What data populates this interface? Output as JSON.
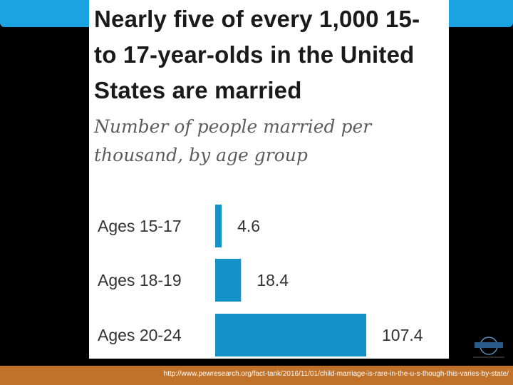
{
  "title": "Nearly five of every 1,000 15- to 17-year-olds in the United States are married",
  "subtitle": "Number of people married per thousand, by age group",
  "source_url": "http://www.pewresearch.org/fact-tank/2016/11/01/child-marriage-is-rare-in-the-u-s-though-this-varies-by-state/",
  "colors": {
    "bar": "#1591c9",
    "accent_strip": "#1aa3e0",
    "footer": "#c0722a"
  },
  "logo_icon": "organization-logo-icon",
  "chart_data": {
    "type": "bar",
    "orientation": "horizontal",
    "title": "Nearly five of every 1,000 15- to 17-year-olds in the United States are married",
    "subtitle": "Number of people married per thousand, by age group",
    "categories": [
      "Ages 15-17",
      "Ages 18-19",
      "Ages 20-24"
    ],
    "values": [
      4.6,
      18.4,
      107.4
    ],
    "value_labels": [
      "4.6",
      "18.4",
      "107.4"
    ],
    "xlim": [
      0,
      107.4
    ],
    "grid": false,
    "legend": "none"
  }
}
